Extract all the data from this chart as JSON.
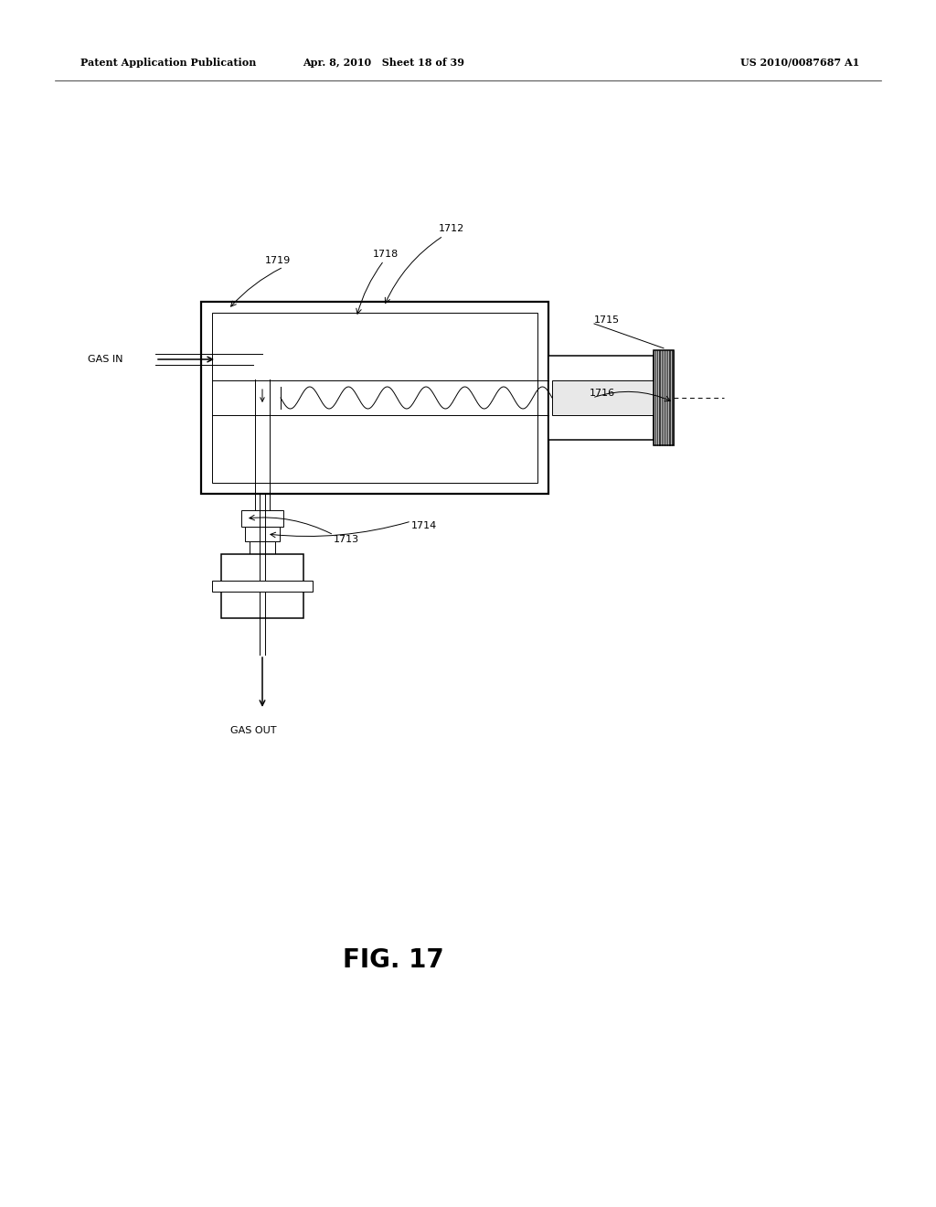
{
  "bg_color": "#ffffff",
  "header_left": "Patent Application Publication",
  "header_center": "Apr. 8, 2010   Sheet 18 of 39",
  "header_right": "US 2010/0087687 A1",
  "fig_label": "FIG. 17",
  "lw_thin": 0.7,
  "lw_med": 1.1,
  "lw_thick": 1.6,
  "label_fs": 8,
  "header_fs": 8,
  "fig_label_fs": 20
}
